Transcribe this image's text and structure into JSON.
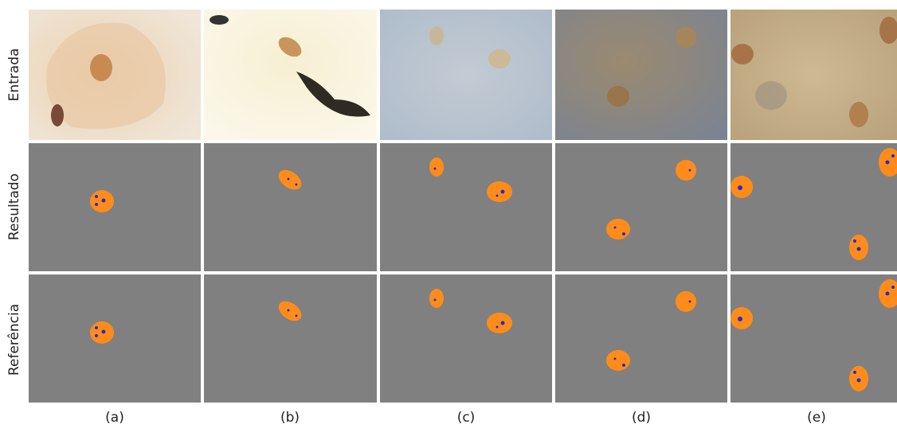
{
  "row_labels": [
    "Entrada",
    "Resultado",
    "Referência"
  ],
  "column_labels": [
    "(a)",
    "(b)",
    "(c)",
    "(d)",
    "(e)"
  ]
}
